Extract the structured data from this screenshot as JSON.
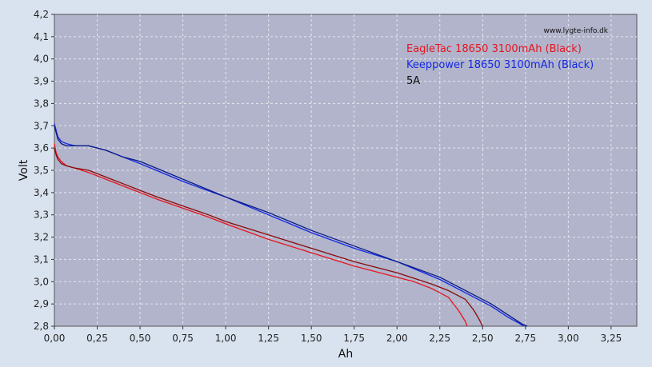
{
  "chart_data": {
    "type": "line",
    "watermark": "www.lygte-info.dk",
    "xlabel": "Ah",
    "ylabel": "Volt",
    "xlim": [
      0,
      3.4
    ],
    "ylim": [
      2.8,
      4.2
    ],
    "xticks": [
      0,
      0.25,
      0.5,
      0.75,
      1.0,
      1.25,
      1.5,
      1.75,
      2.0,
      2.25,
      2.5,
      2.75,
      3.0,
      3.25
    ],
    "xtick_labels": [
      "0,00",
      "0,25",
      "0,50",
      "0,75",
      "1,00",
      "1,25",
      "1,50",
      "1,75",
      "2,00",
      "2,25",
      "2,50",
      "2,75",
      "3,00",
      "3,25"
    ],
    "yticks": [
      2.8,
      2.9,
      3.0,
      3.1,
      3.2,
      3.3,
      3.4,
      3.5,
      3.6,
      3.7,
      3.8,
      3.9,
      4.0,
      4.1,
      4.2
    ],
    "ytick_labels": [
      "2,8",
      "2,9",
      "3,0",
      "3,1",
      "3,2",
      "3,3",
      "3,4",
      "3,5",
      "3,6",
      "3,7",
      "3,8",
      "3,9",
      "4,0",
      "4,1",
      "4,2"
    ],
    "grid": true,
    "legend_position": "top-right",
    "legend": [
      {
        "text": "EagleTac 18650 3100mAh (Black)",
        "color": "#e8141e"
      },
      {
        "text": "Keeppower 18650 3100mAh (Black)",
        "color": "#1428e6"
      },
      {
        "text": "5A",
        "color": "#111111"
      }
    ],
    "colors": {
      "plot_bg": "#b1b4cb",
      "page_bg": "#d9e3ef",
      "grid": "#e6e8f0"
    },
    "series": [
      {
        "color": "#e8141e",
        "points": [
          [
            0,
            3.62
          ],
          [
            0.01,
            3.58
          ],
          [
            0.02,
            3.56
          ],
          [
            0.04,
            3.54
          ],
          [
            0.07,
            3.52
          ],
          [
            0.12,
            3.51
          ],
          [
            0.2,
            3.49
          ],
          [
            0.3,
            3.46
          ],
          [
            0.4,
            3.43
          ],
          [
            0.5,
            3.4
          ],
          [
            0.6,
            3.37
          ],
          [
            0.75,
            3.33
          ],
          [
            0.9,
            3.29
          ],
          [
            1.0,
            3.26
          ],
          [
            1.25,
            3.19
          ],
          [
            1.5,
            3.13
          ],
          [
            1.75,
            3.07
          ],
          [
            2.0,
            3.02
          ],
          [
            2.1,
            3.0
          ],
          [
            2.2,
            2.97
          ],
          [
            2.3,
            2.93
          ],
          [
            2.36,
            2.87
          ],
          [
            2.4,
            2.82
          ],
          [
            2.41,
            2.8
          ]
        ]
      },
      {
        "color": "#8a0a0a",
        "points": [
          [
            0,
            3.6
          ],
          [
            0.01,
            3.57
          ],
          [
            0.02,
            3.55
          ],
          [
            0.04,
            3.53
          ],
          [
            0.07,
            3.52
          ],
          [
            0.12,
            3.51
          ],
          [
            0.2,
            3.5
          ],
          [
            0.3,
            3.47
          ],
          [
            0.4,
            3.44
          ],
          [
            0.5,
            3.41
          ],
          [
            0.6,
            3.38
          ],
          [
            0.75,
            3.34
          ],
          [
            0.9,
            3.3
          ],
          [
            1.0,
            3.27
          ],
          [
            1.25,
            3.21
          ],
          [
            1.5,
            3.15
          ],
          [
            1.75,
            3.09
          ],
          [
            2.0,
            3.04
          ],
          [
            2.2,
            2.99
          ],
          [
            2.3,
            2.96
          ],
          [
            2.4,
            2.92
          ],
          [
            2.45,
            2.87
          ],
          [
            2.48,
            2.83
          ],
          [
            2.5,
            2.8
          ]
        ]
      },
      {
        "color": "#1428e6",
        "points": [
          [
            0,
            3.71
          ],
          [
            0.01,
            3.68
          ],
          [
            0.02,
            3.65
          ],
          [
            0.04,
            3.63
          ],
          [
            0.07,
            3.62
          ],
          [
            0.12,
            3.61
          ],
          [
            0.2,
            3.61
          ],
          [
            0.3,
            3.59
          ],
          [
            0.4,
            3.56
          ],
          [
            0.5,
            3.53
          ],
          [
            0.75,
            3.45
          ],
          [
            1.0,
            3.38
          ],
          [
            1.25,
            3.3
          ],
          [
            1.5,
            3.22
          ],
          [
            1.75,
            3.15
          ],
          [
            2.0,
            3.09
          ],
          [
            2.25,
            3.01
          ],
          [
            2.4,
            2.95
          ],
          [
            2.55,
            2.89
          ],
          [
            2.65,
            2.84
          ],
          [
            2.72,
            2.81
          ],
          [
            2.74,
            2.8
          ]
        ]
      },
      {
        "color": "#0a1a80",
        "points": [
          [
            0,
            3.7
          ],
          [
            0.01,
            3.67
          ],
          [
            0.02,
            3.64
          ],
          [
            0.04,
            3.62
          ],
          [
            0.07,
            3.61
          ],
          [
            0.12,
            3.61
          ],
          [
            0.2,
            3.61
          ],
          [
            0.3,
            3.59
          ],
          [
            0.4,
            3.56
          ],
          [
            0.5,
            3.54
          ],
          [
            0.75,
            3.46
          ],
          [
            1.0,
            3.38
          ],
          [
            1.25,
            3.31
          ],
          [
            1.5,
            3.23
          ],
          [
            1.75,
            3.16
          ],
          [
            2.0,
            3.09
          ],
          [
            2.25,
            3.02
          ],
          [
            2.4,
            2.96
          ],
          [
            2.55,
            2.9
          ],
          [
            2.65,
            2.85
          ],
          [
            2.73,
            2.81
          ],
          [
            2.76,
            2.8
          ]
        ]
      }
    ]
  }
}
